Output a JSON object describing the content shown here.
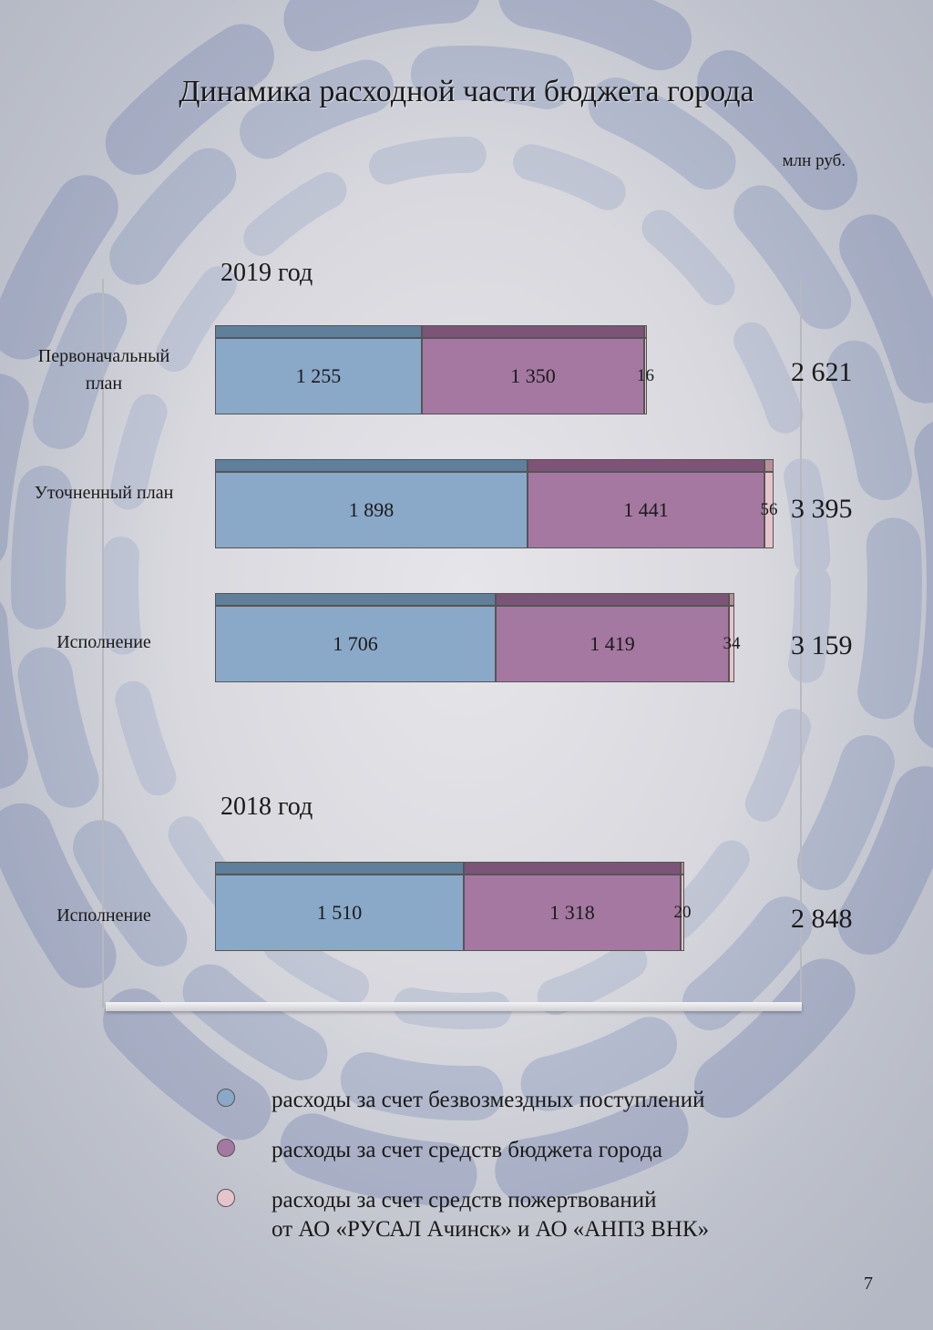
{
  "title": "Динамика расходной части бюджета города",
  "units": "млн руб.",
  "page_number": "7",
  "colors": {
    "gratuitous": "#8aa8c8",
    "gratuitous_top": "#5f7f9a",
    "city_budget": "#a478a0",
    "city_budget_top": "#7c5478",
    "donations": "#e6c4cc",
    "donations_top": "#b89098"
  },
  "chart_data": {
    "type": "bar",
    "orientation": "horizontal",
    "stacked": true,
    "groups": [
      {
        "label": "2019 год",
        "categories": [
          "Первоначальный план",
          "Уточненный план",
          "Исполнение"
        ],
        "totals": [
          "2 621",
          "3 395",
          "3 159"
        ]
      },
      {
        "label": "2018 год",
        "categories": [
          "Исполнение"
        ],
        "totals": [
          "2 848"
        ]
      }
    ],
    "series": [
      {
        "name": "расходы за счет безвозмездных поступлений",
        "key": "gratuitous",
        "values": [
          1255,
          1898,
          1706,
          1510
        ],
        "labels": [
          "1 255",
          "1 898",
          "1 706",
          "1 510"
        ]
      },
      {
        "name": "расходы за счет средств бюджета города",
        "key": "city_budget",
        "values": [
          1350,
          1441,
          1419,
          1318
        ],
        "labels": [
          "1 350",
          "1 441",
          "1 419",
          "1 318"
        ]
      },
      {
        "name": "расходы за счет средств пожертвований\nот АО «РУСАЛ Ачинск» и АО «АНПЗ ВНК»",
        "key": "donations",
        "values": [
          16,
          56,
          34,
          20
        ],
        "labels": [
          "16",
          "56",
          "34",
          "20"
        ]
      }
    ],
    "legend_position": "bottom",
    "grid": false
  }
}
